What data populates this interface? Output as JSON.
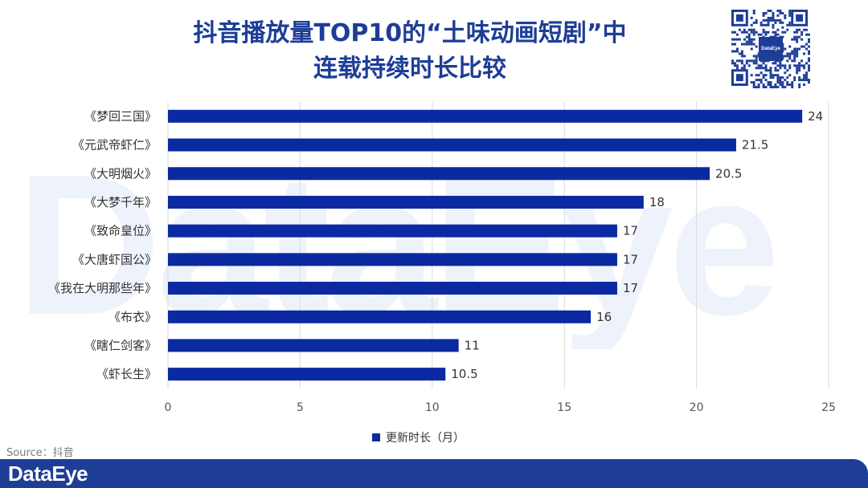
{
  "watermark": "DataEye",
  "title": {
    "line1": "抖音播放量TOP10的“土味动画短剧”中",
    "line2": "连载持续时长比较"
  },
  "qr_label": "DataEye",
  "source": "Source：抖音",
  "brand": "DataEye",
  "colors": {
    "bar": "#0b2aa1",
    "title": "#1d3d96",
    "footer": "#1d3d96",
    "grid": "#d9d9d9"
  },
  "chart_data": {
    "type": "bar",
    "orientation": "horizontal",
    "categories": [
      "《梦回三国》",
      "《元武帝虾仁》",
      "《大明烟火》",
      "《大梦千年》",
      "《致命皇位》",
      "《大唐虾国公》",
      "《我在大明那些年》",
      "《布衣》",
      "《瞎仁剑客》",
      "《虾长生》"
    ],
    "series": [
      {
        "name": "更新时长（月）",
        "values": [
          24,
          21.5,
          20.5,
          18,
          17,
          17,
          17,
          16,
          11,
          10.5
        ]
      }
    ],
    "data_labels": [
      "24",
      "21.5",
      "20.5",
      "18",
      "17",
      "17",
      "17",
      "16",
      "11",
      "10.5"
    ],
    "xlim": [
      0,
      25
    ],
    "xticks": [
      0,
      5,
      10,
      15,
      20,
      25
    ],
    "grid": true,
    "legend": "bottom"
  }
}
